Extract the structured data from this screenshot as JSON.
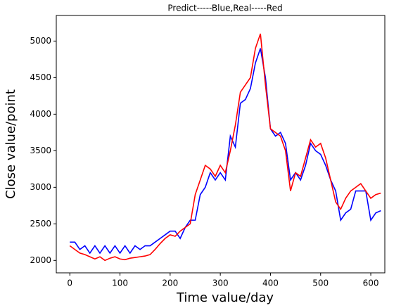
{
  "chart_data": {
    "type": "line",
    "title": "Predict-----Blue,Real-----Red",
    "x_label": "Time value/day",
    "y_label": "Close value/point",
    "x": [
      0,
      10,
      20,
      30,
      40,
      50,
      60,
      70,
      80,
      90,
      100,
      110,
      120,
      130,
      140,
      150,
      160,
      170,
      180,
      190,
      200,
      210,
      220,
      230,
      240,
      250,
      260,
      270,
      280,
      290,
      300,
      310,
      320,
      330,
      340,
      350,
      360,
      370,
      380,
      390,
      400,
      410,
      420,
      430,
      440,
      450,
      460,
      470,
      480,
      490,
      500,
      510,
      520,
      530,
      540,
      550,
      560,
      570,
      580,
      590,
      600,
      610,
      620
    ],
    "series": [
      {
        "name": "Predict",
        "color": "#0000ff",
        "values": [
          2250,
          2250,
          2150,
          2200,
          2100,
          2200,
          2100,
          2200,
          2100,
          2200,
          2100,
          2200,
          2100,
          2200,
          2150,
          2200,
          2200,
          2250,
          2300,
          2350,
          2400,
          2400,
          2300,
          2450,
          2550,
          2550,
          2900,
          3000,
          3200,
          3100,
          3200,
          3100,
          3700,
          3550,
          4150,
          4200,
          4350,
          4700,
          4900,
          4500,
          3800,
          3700,
          3750,
          3600,
          3100,
          3200,
          3100,
          3300,
          3600,
          3500,
          3450,
          3300,
          3100,
          2950,
          2550,
          2650,
          2700,
          2950,
          2950,
          2950,
          2550,
          2650,
          2680
        ]
      },
      {
        "name": "Real",
        "color": "#ff0000",
        "values": [
          2200,
          2150,
          2100,
          2080,
          2050,
          2020,
          2050,
          2000,
          2030,
          2050,
          2020,
          2010,
          2030,
          2040,
          2050,
          2060,
          2080,
          2150,
          2230,
          2300,
          2350,
          2330,
          2400,
          2450,
          2500,
          2900,
          3100,
          3300,
          3250,
          3150,
          3300,
          3200,
          3500,
          3850,
          4300,
          4400,
          4500,
          4900,
          5100,
          4400,
          3800,
          3750,
          3700,
          3500,
          2950,
          3200,
          3150,
          3400,
          3650,
          3550,
          3600,
          3400,
          3100,
          2800,
          2700,
          2850,
          2950,
          3000,
          3050,
          2950,
          2850,
          2900,
          2920
        ]
      }
    ],
    "xlim": [
      -27,
      628
    ],
    "xticks": [
      0,
      100,
      200,
      300,
      400,
      500,
      600
    ],
    "ylim": [
      1830,
      5350
    ],
    "yticks": [
      2000,
      2500,
      3000,
      3500,
      4000,
      4500,
      5000
    ],
    "grid": false
  }
}
